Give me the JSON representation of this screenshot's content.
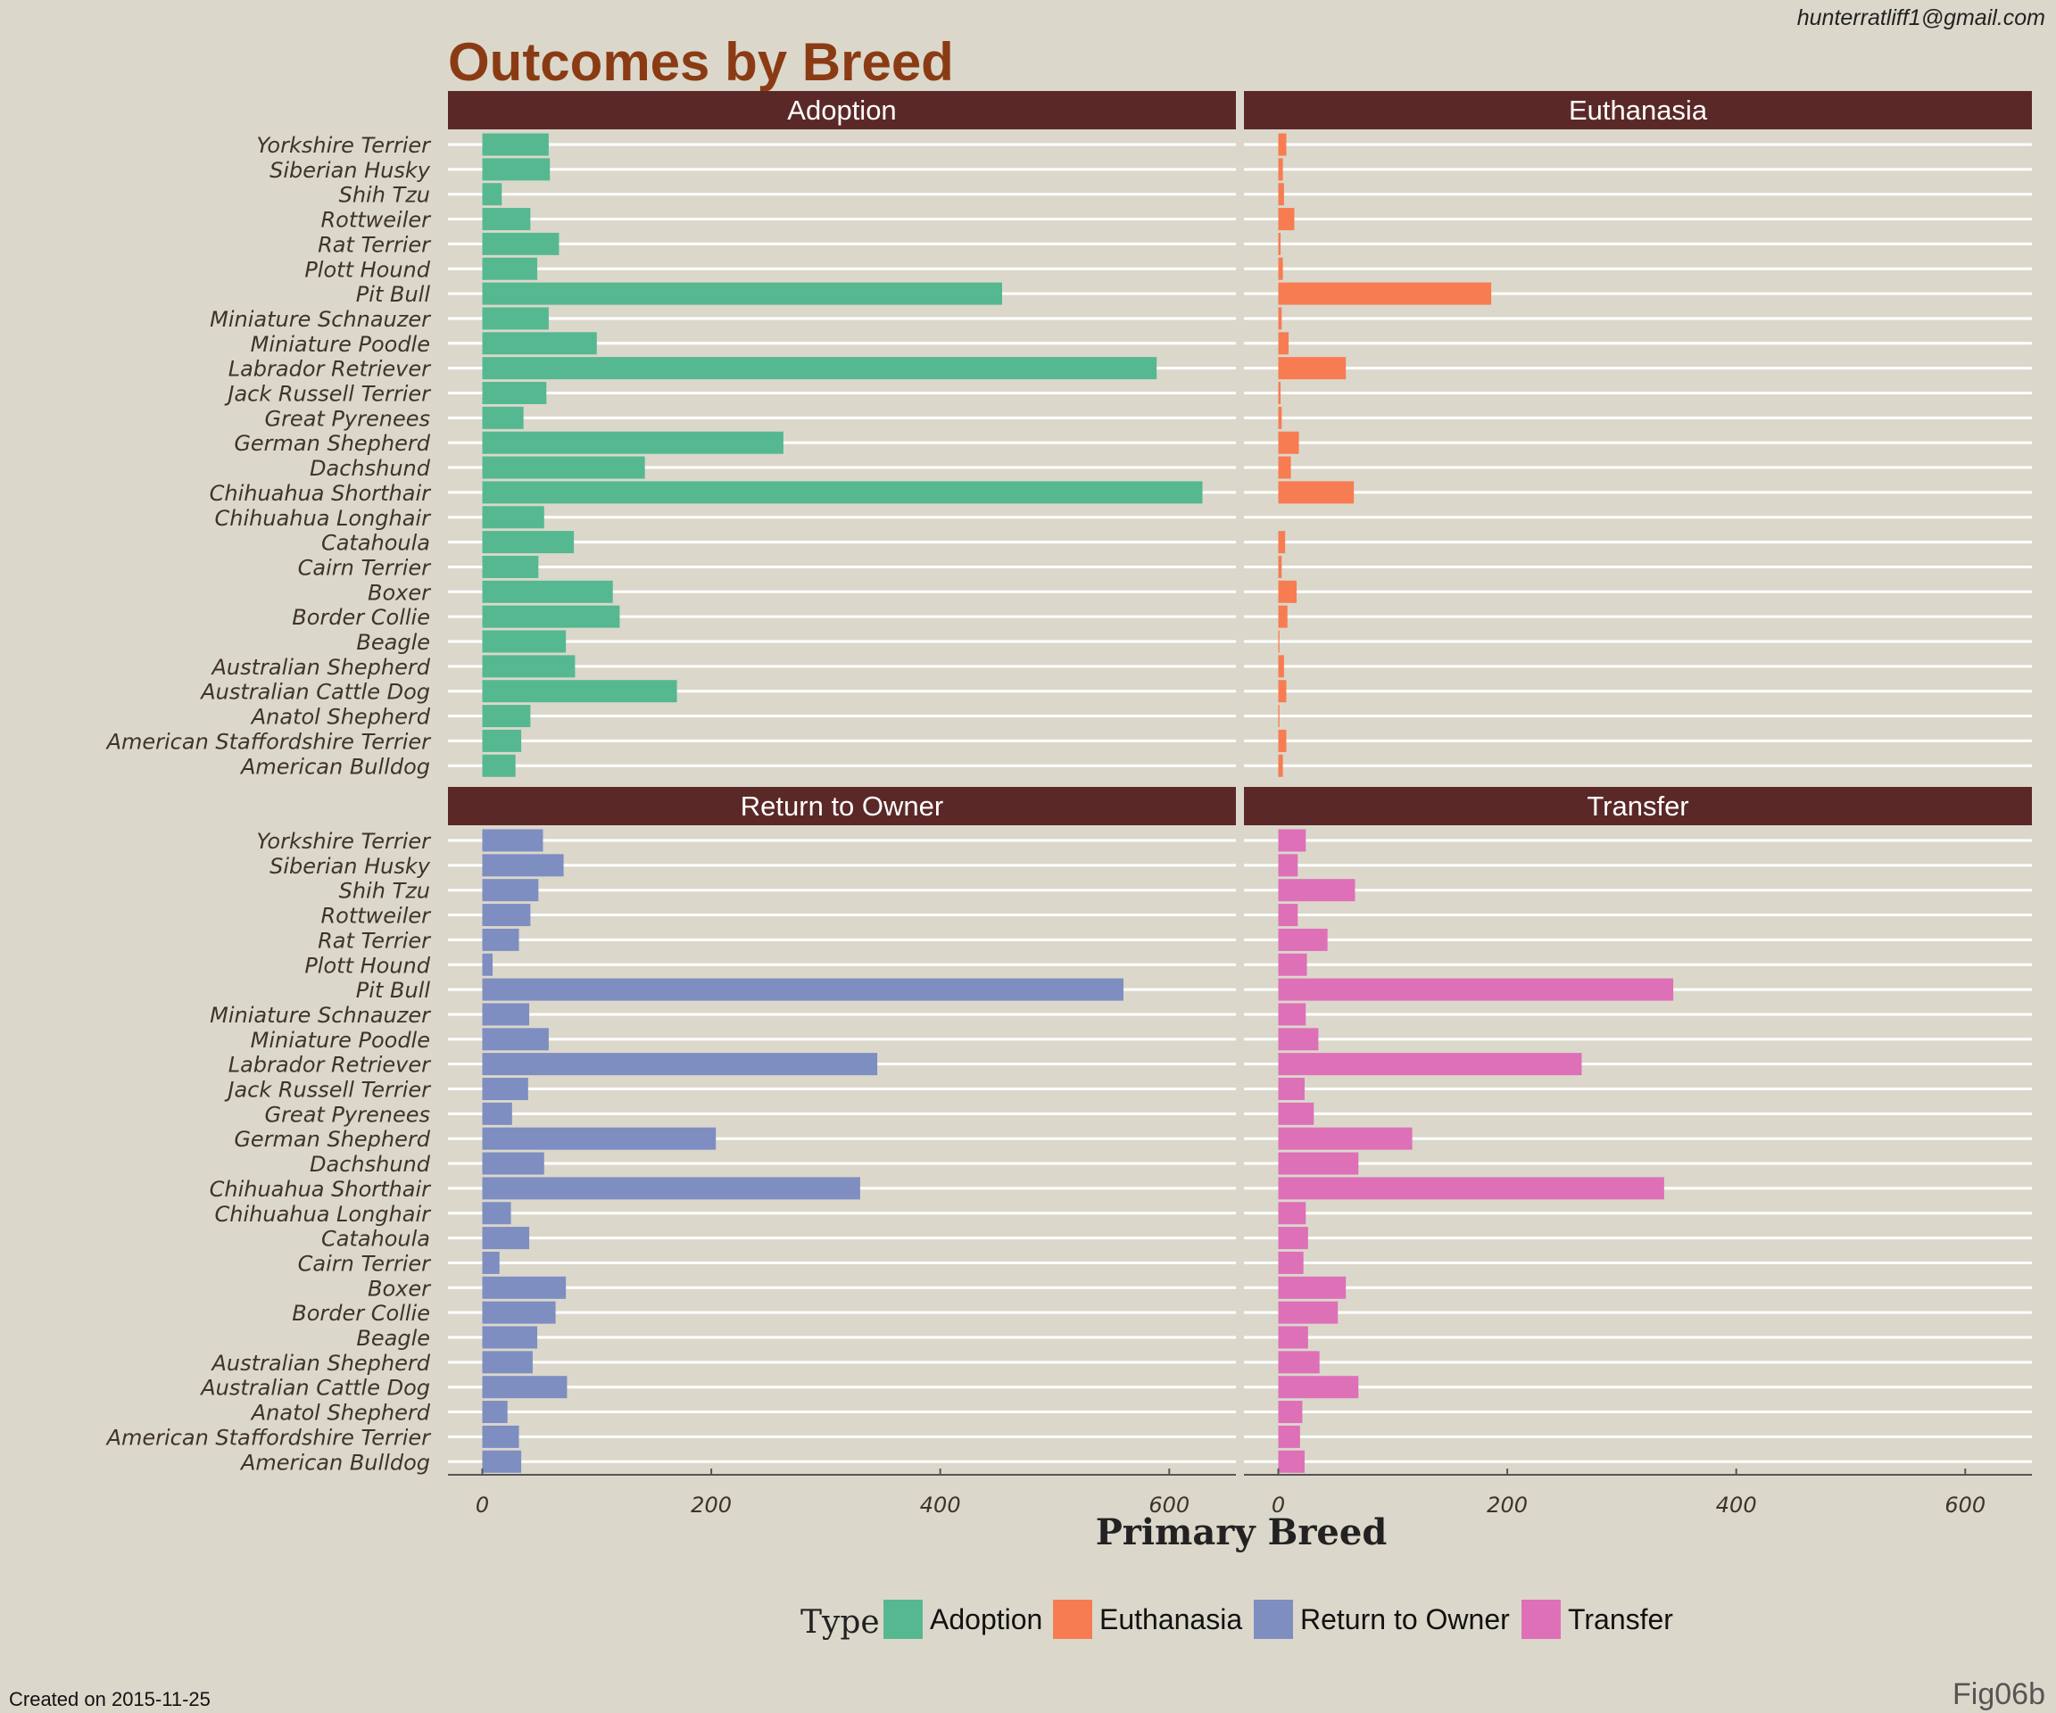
{
  "chart_data": {
    "type": "bar",
    "orientation": "horizontal",
    "title": "Outcomes by Breed",
    "xlabel": "Primary Breed",
    "xlim": [
      -30,
      660
    ],
    "x_ticks": [
      0,
      200,
      400,
      600
    ],
    "grid": true,
    "legend_placement": "bottom",
    "legend_title": "Type",
    "categories": [
      "Yorkshire Terrier",
      "Siberian Husky",
      "Shih Tzu",
      "Rottweiler",
      "Rat Terrier",
      "Plott Hound",
      "Pit Bull",
      "Miniature Schnauzer",
      "Miniature Poodle",
      "Labrador Retriever",
      "Jack Russell Terrier",
      "Great Pyrenees",
      "German Shepherd",
      "Dachshund",
      "Chihuahua Shorthair",
      "Chihuahua Longhair",
      "Catahoula",
      "Cairn Terrier",
      "Boxer",
      "Border Collie",
      "Beagle",
      "Australian Shepherd",
      "Australian Cattle Dog",
      "Anatol Shepherd",
      "American Staffordshire Terrier",
      "American Bulldog"
    ],
    "series": [
      {
        "name": "Adoption",
        "color": "#56b891",
        "values": [
          58,
          59,
          17,
          42,
          67,
          48,
          454,
          58,
          100,
          589,
          56,
          36,
          263,
          142,
          629,
          54,
          80,
          49,
          114,
          120,
          73,
          81,
          170,
          42,
          34,
          29
        ]
      },
      {
        "name": "Euthanasia",
        "color": "#f87c52",
        "values": [
          7,
          4,
          5,
          14,
          2,
          4,
          186,
          3,
          9,
          59,
          2,
          3,
          18,
          11,
          66,
          0,
          6,
          3,
          16,
          8,
          1,
          5,
          7,
          1,
          7,
          4
        ]
      },
      {
        "name": "Return to Owner",
        "color": "#7e8ec1",
        "values": [
          53,
          71,
          49,
          42,
          32,
          9,
          560,
          41,
          58,
          345,
          40,
          26,
          204,
          54,
          330,
          25,
          41,
          15,
          73,
          64,
          48,
          44,
          74,
          22,
          32,
          34
        ]
      },
      {
        "name": "Transfer",
        "color": "#de70b8",
        "values": [
          24,
          17,
          67,
          17,
          43,
          25,
          345,
          24,
          35,
          265,
          23,
          31,
          117,
          70,
          337,
          24,
          26,
          22,
          59,
          52,
          26,
          36,
          70,
          21,
          19,
          23
        ]
      }
    ]
  },
  "theme": {
    "background": "#dbd8cb",
    "strip_fill": "#5b2828",
    "title_color": "#8b3b14",
    "grid_color": "#ffffff"
  },
  "annotations": {
    "email": "hunterratliff1@gmail.com",
    "created": "Created on 2015-11-25",
    "figure_id": "Fig06b"
  }
}
